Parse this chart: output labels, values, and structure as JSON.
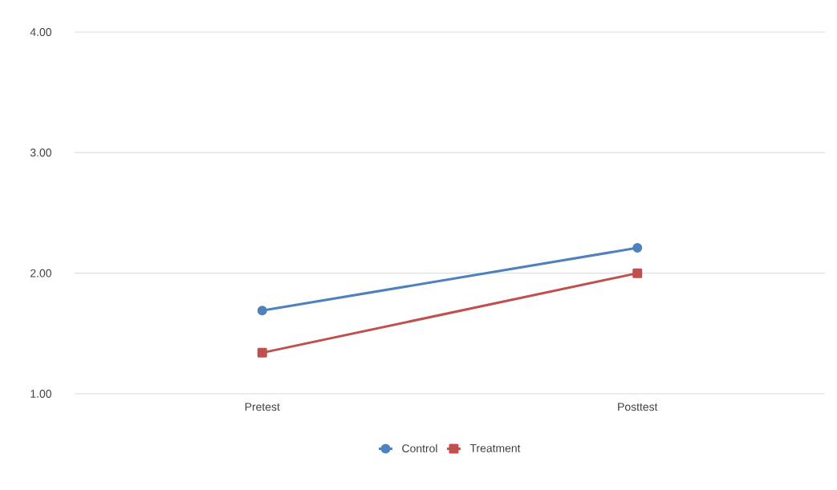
{
  "chart_data": {
    "type": "line",
    "categories": [
      "Pretest",
      "Posttest"
    ],
    "series": [
      {
        "name": "Control",
        "color": "#4f81bd",
        "marker": "circle",
        "values": [
          1.69,
          2.21
        ]
      },
      {
        "name": "Treatment",
        "color": "#c0504d",
        "marker": "square",
        "values": [
          1.34,
          2.0
        ]
      }
    ],
    "ylim": [
      1,
      4
    ],
    "yticks": [
      {
        "value": 1,
        "label": "1.00"
      },
      {
        "value": 2,
        "label": "2.00"
      },
      {
        "value": 3,
        "label": "3.00"
      },
      {
        "value": 4,
        "label": "4.00"
      }
    ],
    "grid": "y",
    "legend": "bottom"
  }
}
